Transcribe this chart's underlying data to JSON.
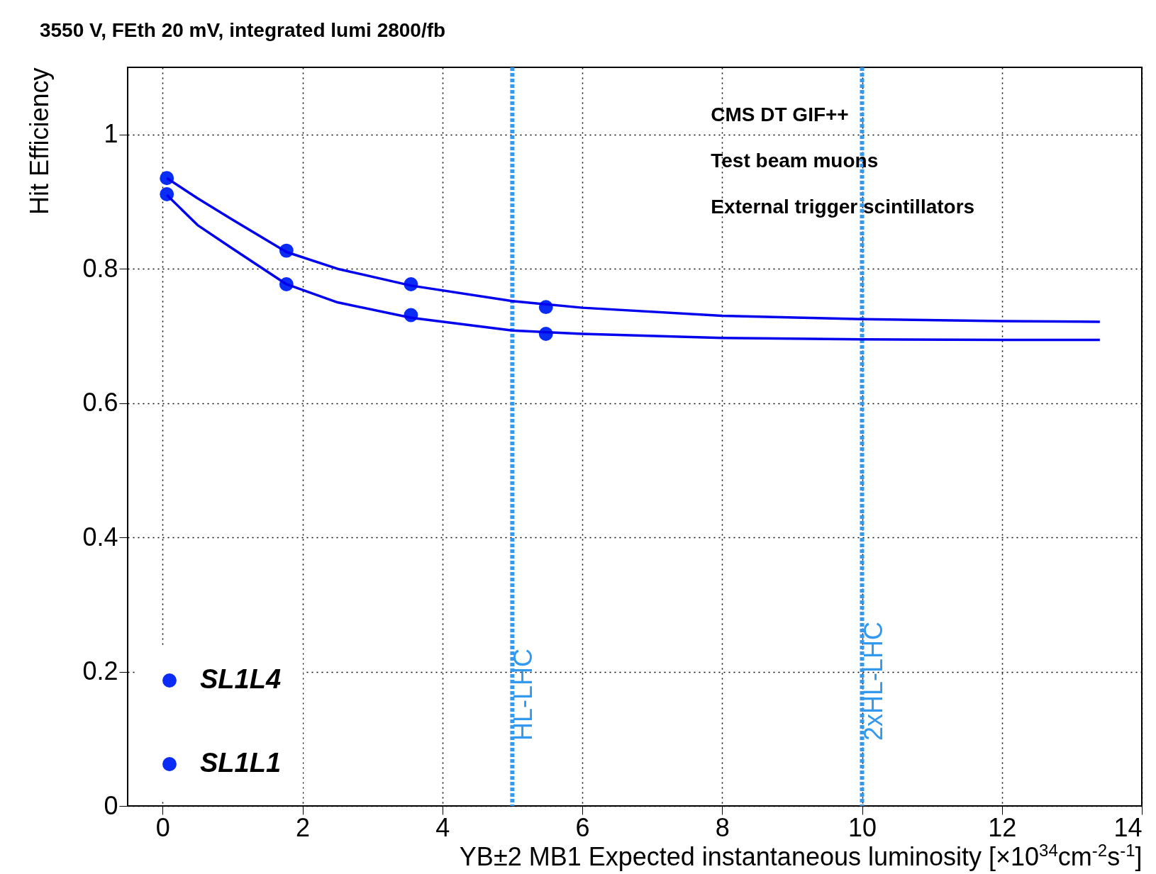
{
  "chart_data": {
    "type": "scatter",
    "title": "3550 V, FEth 20 mV, integrated lumi 2800/fb",
    "xlabel": "YB±2 MB1 Expected instantaneous luminosity [×10$^{34}$cm$^{-2}$s$^{-1}$]",
    "ylabel": "Hit Efficiency",
    "xlim": [
      -0.5,
      14
    ],
    "ylim": [
      0,
      1.1
    ],
    "xticks": [
      0,
      2,
      4,
      6,
      8,
      10,
      12,
      14
    ],
    "yticks": [
      0,
      0.2,
      0.4,
      0.6,
      0.8,
      1
    ],
    "grid": true,
    "legend": "bottom left",
    "marker": "circle",
    "annotations": [
      "CMS DT GIF++",
      "Test beam muons",
      "External trigger scintillators"
    ],
    "ref_lines": [
      {
        "axis": "x",
        "value": 5,
        "label": "HL-LHC",
        "color": "#3399ee",
        "line_style": "dotted"
      },
      {
        "axis": "x",
        "value": 10,
        "label": "2xHL-LHC",
        "color": "#3399ee",
        "line_style": "dotted"
      }
    ],
    "series": [
      {
        "name": "SL1L4",
        "color": "#0a2cf5",
        "x": [
          0.06,
          1.77,
          3.55,
          5.48
        ],
        "values": [
          0.911,
          0.777,
          0.731,
          0.703
        ]
      },
      {
        "name": "SL1L1",
        "color": "#0a2cf5",
        "x": [
          0.06,
          1.77,
          3.55,
          5.48
        ],
        "values": [
          0.935,
          0.827,
          0.777,
          0.743
        ]
      },
      {
        "type": "line",
        "marker": "none",
        "color": "#0000ee",
        "x": [
          0.06,
          0.5,
          1,
          1.77,
          2.5,
          3.55,
          5,
          6,
          8,
          10,
          12,
          13.4
        ],
        "values": [
          0.91,
          0.865,
          0.83,
          0.777,
          0.75,
          0.727,
          0.708,
          0.703,
          0.697,
          0.695,
          0.694,
          0.694
        ]
      },
      {
        "type": "line",
        "marker": "none",
        "color": "#0000ee",
        "x": [
          0.06,
          0.5,
          1,
          1.77,
          2.5,
          3.55,
          5,
          6,
          8,
          10,
          12,
          13.4
        ],
        "values": [
          0.935,
          0.905,
          0.873,
          0.825,
          0.8,
          0.775,
          0.752,
          0.742,
          0.73,
          0.725,
          0.722,
          0.721
        ]
      }
    ]
  }
}
